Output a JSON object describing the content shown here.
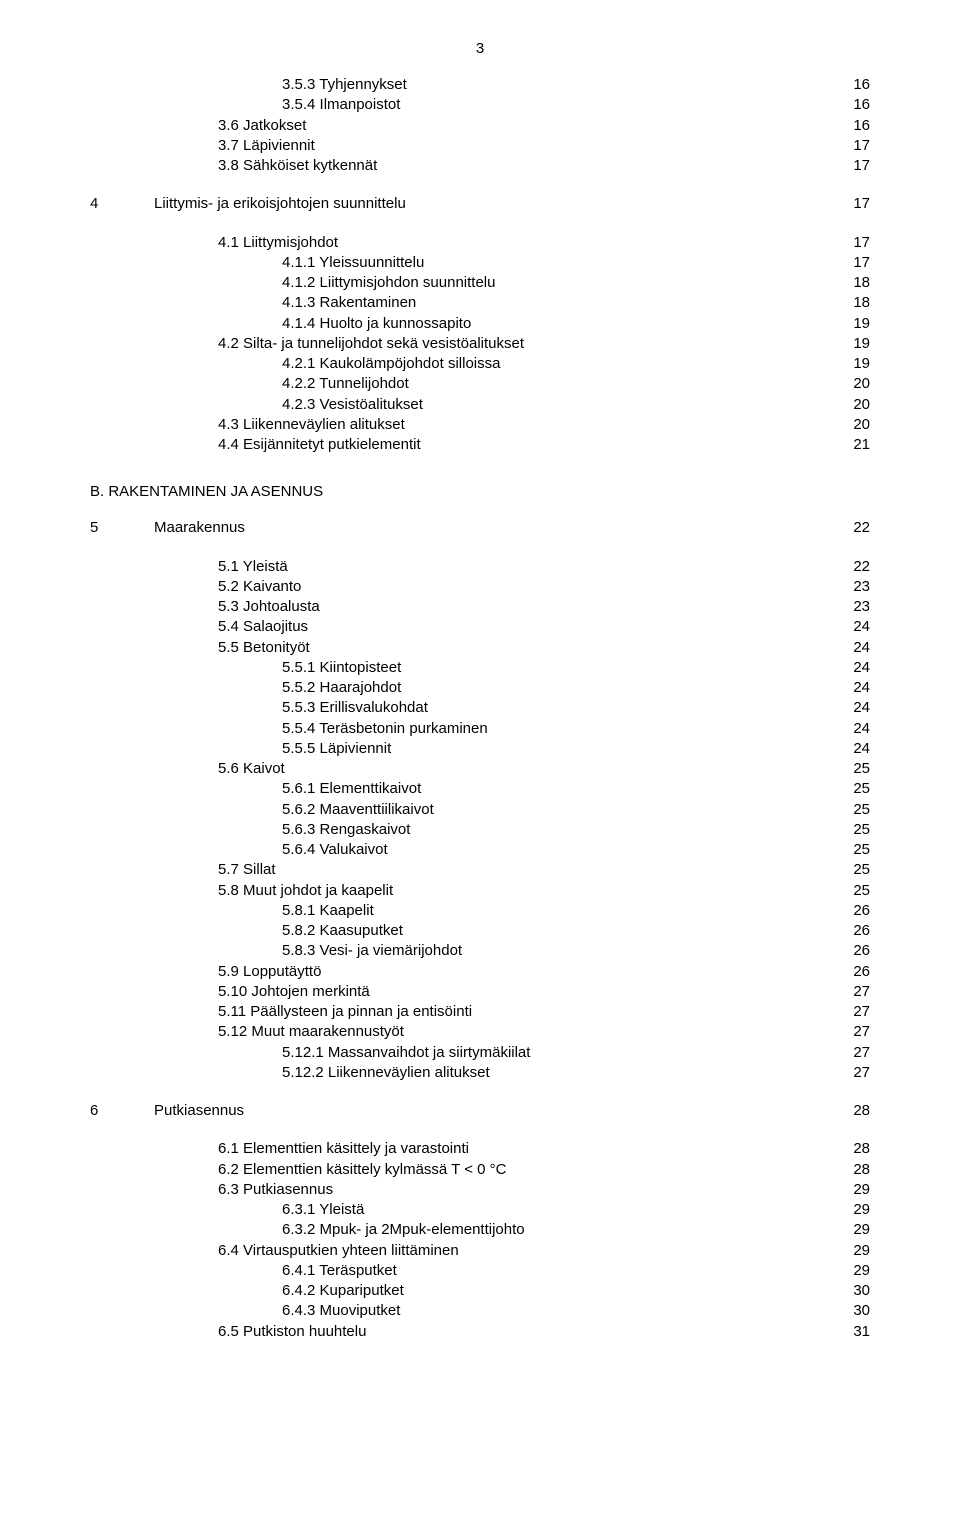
{
  "page_number": "3",
  "section_b_heading": "B. RAKENTAMINEN JA ASENNUS",
  "toc": [
    {
      "indent": 3,
      "label": "3.5.3 Tyhjennykset",
      "page": "16"
    },
    {
      "indent": 3,
      "label": "3.5.4 Ilmanpoistot",
      "page": "16"
    },
    {
      "indent": 2,
      "label": "3.6 Jatkokset",
      "page": "16"
    },
    {
      "indent": 2,
      "label": "3.7 Läpiviennit",
      "page": "17"
    },
    {
      "indent": 2,
      "label": "3.8 Sähköiset kytkennät",
      "page": "17"
    },
    {
      "gap": "section"
    },
    {
      "indent": 0,
      "prefix": "4",
      "label": "Liittymis- ja erikoisjohtojen suunnittelu",
      "page": "17"
    },
    {
      "gap": "section"
    },
    {
      "indent": 2,
      "label": "4.1 Liittymisjohdot",
      "page": "17"
    },
    {
      "indent": 3,
      "label": "4.1.1 Yleissuunnittelu",
      "page": "17"
    },
    {
      "indent": 3,
      "label": "4.1.2 Liittymisjohdon suunnittelu",
      "page": "18"
    },
    {
      "indent": 3,
      "label": "4.1.3 Rakentaminen",
      "page": "18"
    },
    {
      "indent": 3,
      "label": "4.1.4 Huolto ja kunnossapito",
      "page": "19"
    },
    {
      "indent": 2,
      "label": "4.2 Silta- ja tunnelijohdot sekä vesistöalitukset",
      "page": "19"
    },
    {
      "indent": 3,
      "label": "4.2.1 Kaukolämpöjohdot silloissa",
      "page": "19"
    },
    {
      "indent": 3,
      "label": "4.2.2 Tunnelijohdot",
      "page": "20"
    },
    {
      "indent": 3,
      "label": "4.2.3 Vesistöalitukset",
      "page": "20"
    },
    {
      "indent": 2,
      "label": "4.3 Liikenneväylien alitukset",
      "page": "20"
    },
    {
      "indent": 2,
      "label": "4.4 Esijännitetyt putkielementit",
      "page": "21"
    }
  ],
  "toc2": [
    {
      "indent": 0,
      "prefix": "5",
      "label": "Maarakennus",
      "page": "22"
    },
    {
      "gap": "section"
    },
    {
      "indent": 2,
      "label": "5.1 Yleistä",
      "page": "22"
    },
    {
      "indent": 2,
      "label": "5.2 Kaivanto",
      "page": "23"
    },
    {
      "indent": 2,
      "label": "5.3 Johtoalusta",
      "page": "23"
    },
    {
      "indent": 2,
      "label": "5.4 Salaojitus",
      "page": "24"
    },
    {
      "indent": 2,
      "label": "5.5 Betonityöt",
      "page": "24"
    },
    {
      "indent": 3,
      "label": "5.5.1 Kiintopisteet",
      "page": "24"
    },
    {
      "indent": 3,
      "label": "5.5.2 Haarajohdot",
      "page": "24"
    },
    {
      "indent": 3,
      "label": "5.5.3 Erillisvalukohdat",
      "page": "24"
    },
    {
      "indent": 3,
      "label": "5.5.4 Teräsbetonin purkaminen",
      "page": "24"
    },
    {
      "indent": 3,
      "label": "5.5.5 Läpiviennit",
      "page": "24"
    },
    {
      "indent": 2,
      "label": "5.6 Kaivot",
      "page": "25"
    },
    {
      "indent": 3,
      "label": "5.6.1 Elementtikaivot",
      "page": "25"
    },
    {
      "indent": 3,
      "label": "5.6.2 Maaventtiilikaivot",
      "page": "25"
    },
    {
      "indent": 3,
      "label": "5.6.3 Rengaskaivot",
      "page": "25"
    },
    {
      "indent": 3,
      "label": "5.6.4 Valukaivot",
      "page": "25"
    },
    {
      "indent": 2,
      "label": "5.7 Sillat",
      "page": "25"
    },
    {
      "indent": 2,
      "label": "5.8 Muut johdot ja kaapelit",
      "page": "25"
    },
    {
      "indent": 3,
      "label": "5.8.1 Kaapelit",
      "page": "26"
    },
    {
      "indent": 3,
      "label": "5.8.2 Kaasuputket",
      "page": "26"
    },
    {
      "indent": 3,
      "label": "5.8.3 Vesi- ja viemärijohdot",
      "page": "26"
    },
    {
      "indent": 2,
      "label": "5.9 Lopputäyttö",
      "page": "26"
    },
    {
      "indent": 2,
      "label": "5.10 Johtojen merkintä",
      "page": "27"
    },
    {
      "indent": 2,
      "label": "5.11 Päällysteen ja pinnan ja entisöinti",
      "page": "27"
    },
    {
      "indent": 2,
      "label": "5.12 Muut maarakennustyöt",
      "page": "27"
    },
    {
      "indent": 3,
      "label": "5.12.1 Massanvaihdot ja siirtymäkiilat",
      "page": "27"
    },
    {
      "indent": 3,
      "label": "5.12.2 Liikenneväylien alitukset",
      "page": "27"
    },
    {
      "gap": "section"
    },
    {
      "indent": 0,
      "prefix": "6",
      "label": "Putkiasennus",
      "page": "28"
    },
    {
      "gap": "section"
    },
    {
      "indent": 2,
      "label": "6.1 Elementtien käsittely ja varastointi",
      "page": "28"
    },
    {
      "indent": 2,
      "label": "6.2 Elementtien käsittely kylmässä T < 0 °C",
      "page": "28"
    },
    {
      "indent": 2,
      "label": "6.3 Putkiasennus",
      "page": "29"
    },
    {
      "indent": 3,
      "label": "6.3.1 Yleistä",
      "page": "29"
    },
    {
      "indent": 3,
      "label": "6.3.2 Mpuk- ja 2Mpuk-elementtijohto",
      "page": "29"
    },
    {
      "indent": 2,
      "label": "6.4 Virtausputkien yhteen liittäminen",
      "page": "29"
    },
    {
      "indent": 3,
      "label": "6.4.1 Teräsputket",
      "page": "29"
    },
    {
      "indent": 3,
      "label": "6.4.2 Kupariputket",
      "page": "30"
    },
    {
      "indent": 3,
      "label": "6.4.3 Muoviputket",
      "page": "30"
    },
    {
      "indent": 2,
      "label": "6.5 Putkiston huuhtelu",
      "page": "31"
    }
  ]
}
